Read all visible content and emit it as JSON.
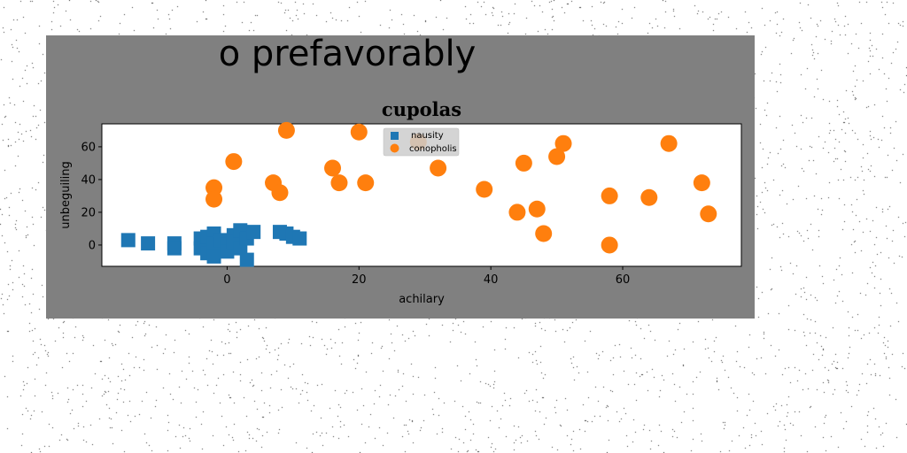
{
  "suptitle": "o prefavorably",
  "chart_data": {
    "type": "scatter",
    "title": "cupolas",
    "xlabel": "achilary",
    "ylabel": "unbeguiling",
    "xlim": [
      -19,
      78
    ],
    "ylim": [
      -13,
      74
    ],
    "xticks": [
      0,
      20,
      40,
      60
    ],
    "yticks": [
      0,
      20,
      40,
      60
    ],
    "grid": false,
    "legend_position": "top-center",
    "series": [
      {
        "name": "nausity",
        "marker": "square",
        "color": "#1f77b4",
        "points": [
          [
            -15,
            3
          ],
          [
            -12,
            1
          ],
          [
            -8,
            1
          ],
          [
            -8,
            -2
          ],
          [
            -4,
            4
          ],
          [
            -4,
            -2
          ],
          [
            -3,
            5
          ],
          [
            -3,
            -5
          ],
          [
            -2,
            7
          ],
          [
            -2,
            1
          ],
          [
            -2,
            -7
          ],
          [
            -1,
            3
          ],
          [
            0,
            0
          ],
          [
            0,
            -4
          ],
          [
            1,
            6
          ],
          [
            1,
            2
          ],
          [
            2,
            9
          ],
          [
            2,
            -2
          ],
          [
            3,
            4
          ],
          [
            3,
            -9
          ],
          [
            4,
            8
          ],
          [
            8,
            8
          ],
          [
            9,
            7
          ],
          [
            10,
            5
          ],
          [
            11,
            4
          ]
        ]
      },
      {
        "name": "conopholis",
        "marker": "circle",
        "color": "#ff7f0e",
        "points": [
          [
            1,
            51
          ],
          [
            9,
            70
          ],
          [
            20,
            69
          ],
          [
            -2,
            35
          ],
          [
            -2,
            28
          ],
          [
            7,
            38
          ],
          [
            8,
            32
          ],
          [
            16,
            47
          ],
          [
            17,
            38
          ],
          [
            21,
            38
          ],
          [
            29,
            63
          ],
          [
            32,
            47
          ],
          [
            39,
            34
          ],
          [
            44,
            20
          ],
          [
            45,
            50
          ],
          [
            47,
            22
          ],
          [
            48,
            7
          ],
          [
            50,
            54
          ],
          [
            51,
            62
          ],
          [
            58,
            30
          ],
          [
            58,
            0
          ],
          [
            64,
            29
          ],
          [
            67,
            62
          ],
          [
            72,
            38
          ],
          [
            73,
            19
          ]
        ]
      }
    ]
  }
}
